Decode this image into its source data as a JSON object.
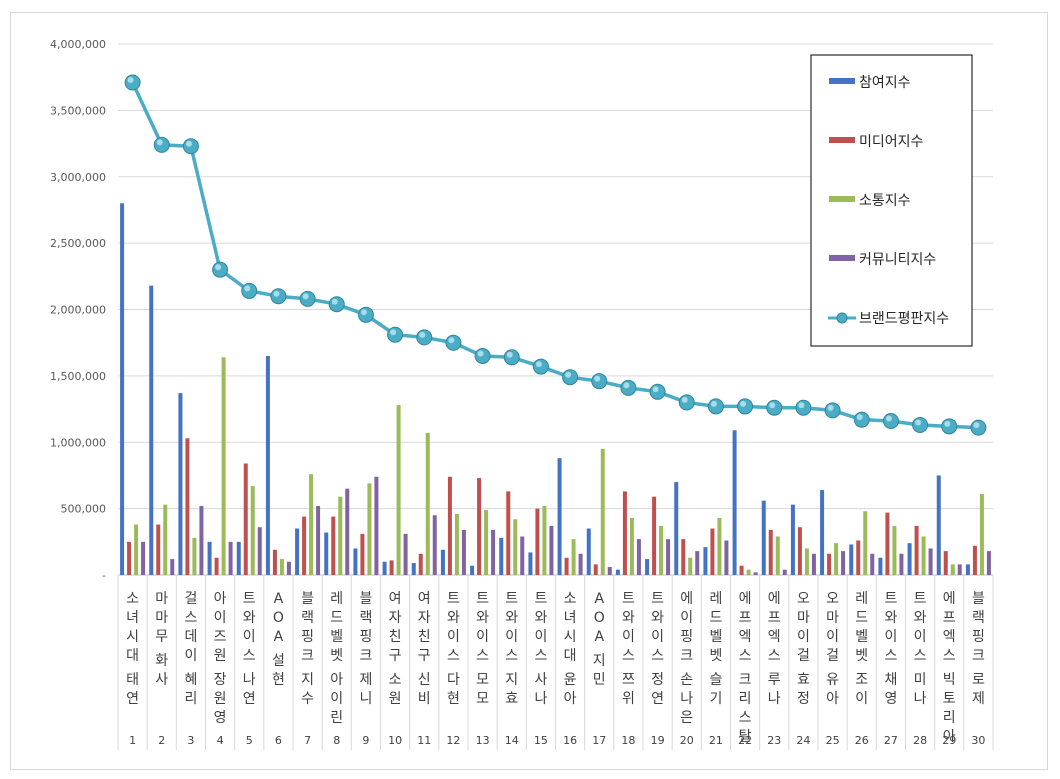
{
  "chart_data": {
    "type": "bar",
    "y_ticks": [
      "-",
      "500,000",
      "1,000,000",
      "1,500,000",
      "2,000,000",
      "2,500,000",
      "3,000,000",
      "3,500,000",
      "4,000,000"
    ],
    "ylim": [
      0,
      4000000
    ],
    "grid": true,
    "legend_position": "top-right",
    "categories": [
      "1",
      "2",
      "3",
      "4",
      "5",
      "6",
      "7",
      "8",
      "9",
      "10",
      "11",
      "12",
      "13",
      "14",
      "15",
      "16",
      "17",
      "18",
      "19",
      "20",
      "21",
      "22",
      "23",
      "24",
      "25",
      "26",
      "27",
      "28",
      "29",
      "30"
    ],
    "names": [
      "소녀시대 태연",
      "마마무 화사",
      "걸스데이 혜리",
      "아이즈원 장원영",
      "트와이스 나연",
      "AOA 설현",
      "블랙핑크 지수",
      "레드벨벳 아이린",
      "블랙핑크 제니",
      "여자친구 소원",
      "여자친구 신비",
      "트와이스 다현",
      "트와이스 모모",
      "트와이스 지효",
      "트와이스 사나",
      "소녀시대 윤아",
      "AOA 지민",
      "트와이스 쯔위",
      "트와이스 정연",
      "에이핑크 손나은",
      "레드벨벳 슬기",
      "에프엑스 크리스탈",
      "에프엑스 루나",
      "오마이걸 효정",
      "오마이걸 유아",
      "레드벨벳 조이",
      "트와이스 채영",
      "트와이스 미나",
      "에프엑스 빅토리아",
      "블랙핑크 로제"
    ],
    "series": [
      {
        "name": "참여지수",
        "type": "bar",
        "color": "#4472C4",
        "values": [
          2800000,
          2180000,
          1370000,
          250000,
          250000,
          1650000,
          350000,
          320000,
          200000,
          100000,
          90000,
          190000,
          70000,
          280000,
          170000,
          880000,
          350000,
          40000,
          120000,
          700000,
          210000,
          1090000,
          560000,
          530000,
          640000,
          230000,
          130000,
          240000,
          750000,
          80000
        ]
      },
      {
        "name": "미디어지수",
        "type": "bar",
        "color": "#C0504D",
        "values": [
          250000,
          380000,
          1030000,
          130000,
          840000,
          190000,
          440000,
          440000,
          310000,
          110000,
          160000,
          740000,
          730000,
          630000,
          500000,
          130000,
          80000,
          630000,
          590000,
          270000,
          350000,
          70000,
          340000,
          360000,
          160000,
          260000,
          470000,
          370000,
          180000,
          220000
        ]
      },
      {
        "name": "소통지수",
        "type": "bar",
        "color": "#9BBB59",
        "values": [
          380000,
          530000,
          280000,
          1640000,
          670000,
          120000,
          760000,
          590000,
          690000,
          1280000,
          1070000,
          460000,
          490000,
          420000,
          520000,
          270000,
          950000,
          430000,
          370000,
          130000,
          430000,
          40000,
          290000,
          200000,
          240000,
          480000,
          370000,
          290000,
          80000,
          610000
        ]
      },
      {
        "name": "커뮤니티지수",
        "type": "bar",
        "color": "#8064A2",
        "values": [
          250000,
          120000,
          520000,
          250000,
          360000,
          100000,
          520000,
          650000,
          740000,
          310000,
          450000,
          340000,
          340000,
          290000,
          370000,
          160000,
          60000,
          270000,
          270000,
          180000,
          260000,
          20000,
          40000,
          160000,
          180000,
          160000,
          160000,
          200000,
          80000,
          180000
        ]
      },
      {
        "name": "브랜드평판지수",
        "type": "line",
        "color": "#4BACC6",
        "values": [
          3710000,
          3240000,
          3230000,
          2300000,
          2140000,
          2100000,
          2080000,
          2040000,
          1960000,
          1810000,
          1790000,
          1750000,
          1650000,
          1640000,
          1570000,
          1490000,
          1460000,
          1410000,
          1380000,
          1300000,
          1270000,
          1270000,
          1260000,
          1260000,
          1240000,
          1170000,
          1160000,
          1130000,
          1120000,
          1110000
        ]
      }
    ]
  }
}
